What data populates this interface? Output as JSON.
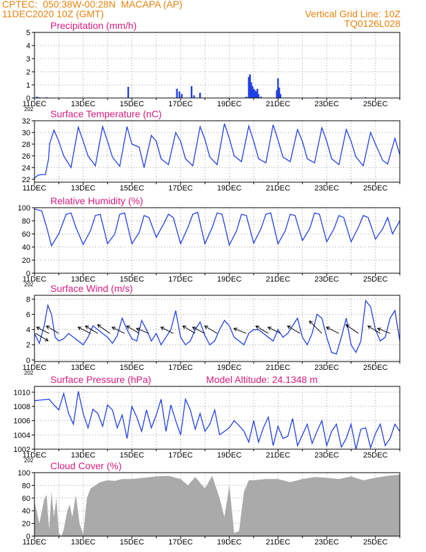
{
  "header": {
    "line1": "CPTEC:  050:38W-00:28N  MACAPA (AP)",
    "line2": "11DEC2020 10Z (GMT)",
    "grid_note": "Vertical Grid Line: 10Z",
    "model_code": "TQ0126L028"
  },
  "colors": {
    "header": "#e8820c",
    "title": "#d81b7d",
    "series": "#1f3fe6",
    "cloud": "#aaaaaa",
    "grid": "#9a9a9a"
  },
  "chart_data": [
    {
      "id": "precip",
      "type": "bar",
      "title": "Precipitation (mm/h)",
      "ylim": [
        0,
        5
      ],
      "yticks": [
        0,
        1,
        2,
        3,
        4,
        5
      ],
      "grid": true,
      "x_ticks": [
        "11DEC",
        "13DEC",
        "15DEC",
        "17DEC",
        "19DEC",
        "21DEC",
        "23DEC",
        "25DEC"
      ],
      "x_cut": "202",
      "days": [
        11,
        26
      ],
      "x": [
        11.1,
        11.2,
        11.5,
        14.85,
        16.85,
        16.95,
        17.05,
        17.45,
        17.55,
        17.8,
        19.7,
        19.8,
        19.85,
        19.9,
        19.95,
        20.0,
        20.05,
        20.1,
        20.15,
        20.2,
        20.3,
        20.95,
        21.0,
        21.05,
        21.1,
        22.6,
        24.6
      ],
      "values": [
        0.1,
        0.05,
        0.05,
        0.85,
        0.7,
        0.5,
        0.3,
        0.9,
        0.2,
        0.4,
        0.1,
        1.6,
        1.8,
        1.2,
        0.9,
        0.7,
        0.6,
        0.5,
        0.7,
        0.3,
        0.1,
        0.6,
        1.5,
        0.8,
        0.3,
        0.05,
        0.05
      ]
    },
    {
      "id": "temp",
      "type": "line",
      "title": "Surface Temperature (nC)",
      "ylim": [
        21.5,
        32
      ],
      "yticks": [
        22,
        24,
        26,
        28,
        30,
        32
      ],
      "grid": true,
      "x_ticks": [
        "11DEC",
        "13DEC",
        "15DEC",
        "17DEC",
        "19DEC",
        "21DEC",
        "23DEC",
        "25DEC"
      ],
      "x_cut": "",
      "days": [
        11,
        26
      ],
      "x": [
        11.0,
        11.15,
        11.3,
        11.45,
        11.58,
        11.62,
        11.8,
        12.0,
        12.2,
        12.5,
        12.8,
        13.0,
        13.2,
        13.5,
        13.8,
        14.0,
        14.2,
        14.5,
        14.8,
        15.0,
        15.3,
        15.5,
        15.8,
        16.0,
        16.2,
        16.5,
        16.8,
        17.0,
        17.2,
        17.5,
        17.8,
        18.0,
        18.2,
        18.5,
        18.8,
        19.0,
        19.2,
        19.5,
        19.8,
        20.0,
        20.2,
        20.5,
        20.8,
        21.0,
        21.2,
        21.5,
        21.8,
        22.0,
        22.2,
        22.5,
        22.8,
        23.0,
        23.2,
        23.5,
        23.8,
        24.0,
        24.2,
        24.5,
        24.8,
        25.0,
        25.3,
        25.5,
        25.8,
        26.0
      ],
      "values": [
        22.2,
        22.7,
        22.8,
        22.8,
        25.5,
        28.0,
        30.4,
        28.5,
        26.0,
        24.0,
        30.9,
        28.5,
        26.0,
        24.3,
        31.0,
        28.5,
        25.8,
        24.2,
        31.0,
        28.0,
        27.5,
        24.0,
        29.5,
        28.5,
        25.5,
        24.5,
        30.0,
        28.5,
        25.5,
        24.3,
        31.0,
        28.8,
        25.8,
        24.5,
        31.5,
        29.0,
        26.0,
        25.0,
        31.1,
        28.5,
        25.5,
        24.8,
        31.3,
        28.7,
        25.8,
        25.0,
        30.5,
        28.5,
        25.5,
        24.8,
        30.8,
        28.5,
        25.5,
        24.5,
        30.5,
        28.5,
        25.8,
        24.3,
        30.0,
        28.0,
        25.2,
        24.6,
        29.0,
        26.2
      ]
    },
    {
      "id": "rh",
      "type": "line",
      "title": "Relative Humidity (%)",
      "ylim": [
        0,
        100
      ],
      "yticks": [
        0,
        20,
        40,
        60,
        80,
        100
      ],
      "grid": true,
      "x_ticks": [
        "11DEC",
        "13DEC",
        "15DEC",
        "17DEC",
        "19DEC",
        "21DEC",
        "23DEC",
        "25DEC"
      ],
      "x_cut": "202",
      "days": [
        11,
        26
      ],
      "x": [
        11.0,
        11.3,
        11.5,
        11.7,
        12.0,
        12.3,
        12.5,
        12.7,
        13.0,
        13.3,
        13.5,
        13.7,
        14.0,
        14.3,
        14.5,
        14.7,
        15.0,
        15.3,
        15.5,
        15.7,
        16.0,
        16.3,
        16.5,
        16.7,
        17.0,
        17.3,
        17.5,
        17.7,
        18.0,
        18.3,
        18.5,
        18.7,
        19.0,
        19.3,
        19.5,
        19.7,
        20.0,
        20.3,
        20.5,
        20.7,
        21.0,
        21.3,
        21.5,
        21.7,
        22.0,
        22.3,
        22.5,
        22.7,
        23.0,
        23.3,
        23.5,
        23.7,
        24.0,
        24.3,
        24.5,
        24.7,
        25.0,
        25.3,
        25.5,
        25.7,
        26.0
      ],
      "values": [
        98,
        95,
        70,
        42,
        60,
        90,
        92,
        70,
        44,
        65,
        88,
        90,
        45,
        60,
        90,
        92,
        45,
        62,
        88,
        85,
        55,
        75,
        90,
        85,
        45,
        70,
        90,
        93,
        45,
        70,
        92,
        90,
        43,
        65,
        90,
        88,
        46,
        68,
        90,
        92,
        45,
        65,
        90,
        88,
        50,
        68,
        92,
        90,
        48,
        68,
        88,
        85,
        48,
        70,
        88,
        85,
        52,
        68,
        85,
        60,
        80
      ]
    },
    {
      "id": "wind",
      "type": "line",
      "title": "Surface Wind (m/s)",
      "ylim": [
        -0.2,
        8.5
      ],
      "yticks": [
        0,
        2,
        4,
        6,
        8
      ],
      "grid": true,
      "x_ticks": [
        "11DEC",
        "13DEC",
        "15DEC",
        "17DEC",
        "19DEC",
        "21DEC",
        "23DEC",
        "25DEC"
      ],
      "x_cut": "202",
      "days": [
        11,
        26
      ],
      "x": [
        11.0,
        11.2,
        11.4,
        11.55,
        11.7,
        11.85,
        12.0,
        12.2,
        12.4,
        12.6,
        12.8,
        13.0,
        13.2,
        13.4,
        13.6,
        13.8,
        14.0,
        14.2,
        14.4,
        14.6,
        14.8,
        15.0,
        15.2,
        15.4,
        15.6,
        15.8,
        16.0,
        16.2,
        16.4,
        16.6,
        16.8,
        17.0,
        17.2,
        17.4,
        17.6,
        17.8,
        18.0,
        18.2,
        18.4,
        18.6,
        18.8,
        19.0,
        19.2,
        19.4,
        19.6,
        19.8,
        20.0,
        20.2,
        20.4,
        20.6,
        20.8,
        21.0,
        21.2,
        21.4,
        21.6,
        21.8,
        22.0,
        22.2,
        22.4,
        22.6,
        22.8,
        23.0,
        23.2,
        23.4,
        23.6,
        23.8,
        24.0,
        24.2,
        24.4,
        24.6,
        24.8,
        25.0,
        25.2,
        25.4,
        25.6,
        25.8,
        26.0
      ],
      "values": [
        3.5,
        2.2,
        4.5,
        7.2,
        6.0,
        3.0,
        2.5,
        2.8,
        3.5,
        3.0,
        2.5,
        2.0,
        3.0,
        4.5,
        4.0,
        3.5,
        3.0,
        2.2,
        3.2,
        5.5,
        4.0,
        2.8,
        2.5,
        5.2,
        4.0,
        2.5,
        3.5,
        2.0,
        3.0,
        4.0,
        6.5,
        3.0,
        2.0,
        2.5,
        4.0,
        5.0,
        3.2,
        2.0,
        2.5,
        4.0,
        5.2,
        4.5,
        3.0,
        2.5,
        2.0,
        3.5,
        4.0,
        4.0,
        3.5,
        3.0,
        2.5,
        4.0,
        3.0,
        3.5,
        4.5,
        5.5,
        3.0,
        2.0,
        3.5,
        6.0,
        5.5,
        3.0,
        1.0,
        0.8,
        3.0,
        5.5,
        2.0,
        1.0,
        2.5,
        7.8,
        7.0,
        4.0,
        2.5,
        3.0,
        5.5,
        6.5,
        2.5
      ],
      "arrows": [
        {
          "day": 11.05,
          "u": 1.0,
          "v": -0.6
        },
        {
          "day": 11.6,
          "u": -1.0,
          "v": 0.5
        },
        {
          "day": 12.0,
          "u": -1.0,
          "v": 0.6
        },
        {
          "day": 13.3,
          "u": -1.0,
          "v": 0.5
        },
        {
          "day": 13.6,
          "u": -1.0,
          "v": 0.6
        },
        {
          "day": 14.1,
          "u": -1.0,
          "v": 0.7
        },
        {
          "day": 14.7,
          "u": -1.0,
          "v": 0.5
        },
        {
          "day": 15.3,
          "u": -1.0,
          "v": 0.6
        },
        {
          "day": 15.7,
          "u": -1.0,
          "v": 0.4
        },
        {
          "day": 16.7,
          "u": -1.0,
          "v": 0.5
        },
        {
          "day": 17.6,
          "u": -1.0,
          "v": 0.6
        },
        {
          "day": 18.0,
          "u": -1.0,
          "v": 0.5
        },
        {
          "day": 18.5,
          "u": -1.0,
          "v": 0.6
        },
        {
          "day": 19.7,
          "u": -1.0,
          "v": 0.4
        },
        {
          "day": 20.6,
          "u": -1.0,
          "v": 0.6
        },
        {
          "day": 21.1,
          "u": -1.0,
          "v": 0.5
        },
        {
          "day": 21.9,
          "u": -1.0,
          "v": 0.6
        },
        {
          "day": 22.8,
          "u": -1.0,
          "v": 1.0
        },
        {
          "day": 23.5,
          "u": -1.0,
          "v": 0.5
        },
        {
          "day": 24.3,
          "u": -1.0,
          "v": 0.7
        },
        {
          "day": 25.2,
          "u": -1.0,
          "v": 0.6
        },
        {
          "day": 25.6,
          "u": -1.0,
          "v": 0.4
        }
      ]
    },
    {
      "id": "pres",
      "type": "line",
      "title": "Surface Pressure (hPa)",
      "note": "Model Altitude: 24.1348 m",
      "ylim": [
        1002,
        1010.8
      ],
      "yticks": [
        1002,
        1004,
        1006,
        1008,
        1010
      ],
      "grid": true,
      "x_ticks": [
        "11DEC",
        "13DEC",
        "15DEC",
        "17DEC",
        "19DEC",
        "21DEC",
        "23DEC",
        "25DEC"
      ],
      "x_cut": "202",
      "days": [
        11,
        26
      ],
      "x": [
        11.0,
        11.3,
        11.6,
        11.8,
        12.0,
        12.2,
        12.4,
        12.6,
        12.8,
        13.0,
        13.2,
        13.4,
        13.6,
        13.8,
        14.0,
        14.2,
        14.4,
        14.6,
        14.8,
        15.0,
        15.2,
        15.4,
        15.6,
        15.8,
        16.0,
        16.2,
        16.4,
        16.6,
        16.8,
        17.0,
        17.2,
        17.4,
        17.6,
        17.8,
        18.0,
        18.2,
        18.4,
        18.6,
        18.8,
        19.0,
        19.2,
        19.4,
        19.6,
        19.8,
        20.0,
        20.2,
        20.4,
        20.6,
        20.8,
        21.0,
        21.2,
        21.4,
        21.6,
        21.8,
        22.0,
        22.2,
        22.4,
        22.6,
        22.8,
        23.0,
        23.2,
        23.4,
        23.6,
        23.8,
        24.0,
        24.2,
        24.4,
        24.6,
        24.8,
        25.0,
        25.2,
        25.4,
        25.6,
        25.8,
        26.0
      ],
      "values": [
        1008.8,
        1008.9,
        1009.0,
        1008.2,
        1007.5,
        1009.8,
        1007.0,
        1005.5,
        1010.1,
        1007.0,
        1005.0,
        1007.6,
        1007.0,
        1005.2,
        1008.2,
        1007.5,
        1005.0,
        1006.8,
        1003.5,
        1008.0,
        1006.5,
        1004.5,
        1007.5,
        1005.0,
        1006.8,
        1009.0,
        1004.5,
        1008.2,
        1006.0,
        1004.0,
        1009.0,
        1007.5,
        1004.8,
        1007.0,
        1004.5,
        1005.5,
        1007.5,
        1004.0,
        1004.5,
        1005.0,
        1006.0,
        1005.3,
        1004.5,
        1003.0,
        1006.0,
        1003.0,
        1005.0,
        1006.5,
        1002.5,
        1005.2,
        1003.5,
        1003.8,
        1006.3,
        1002.5,
        1004.0,
        1005.5,
        1002.8,
        1004.5,
        1006.0,
        1002.5,
        1004.5,
        1005.5,
        1002.3,
        1003.5,
        1005.5,
        1002.0,
        1004.8,
        1005.0,
        1002.2,
        1004.2,
        1005.5,
        1002.5,
        1003.5,
        1005.5,
        1004.5
      ]
    },
    {
      "id": "cloud",
      "type": "area",
      "title": "Cloud Cover (%)",
      "ylim": [
        0,
        100
      ],
      "yticks": [
        0,
        20,
        40,
        60,
        80,
        100
      ],
      "grid": true,
      "x_ticks": [
        "11DEC",
        "13DEC",
        "15DEC",
        "17DEC",
        "19DEC",
        "21DEC",
        "23DEC",
        "25DEC"
      ],
      "x_cut": "",
      "days": [
        11,
        26
      ],
      "x": [
        11.0,
        11.2,
        11.4,
        11.5,
        11.6,
        11.7,
        11.8,
        11.9,
        12.0,
        12.1,
        12.2,
        12.35,
        12.45,
        12.55,
        12.7,
        12.85,
        13.0,
        13.15,
        13.3,
        13.5,
        13.7,
        14.0,
        14.3,
        14.6,
        15.0,
        15.5,
        16.0,
        16.5,
        17.0,
        17.3,
        17.6,
        18.0,
        18.3,
        18.6,
        18.8,
        19.0,
        19.2,
        19.4,
        19.6,
        19.8,
        20.0,
        20.5,
        21.0,
        21.5,
        22.0,
        22.5,
        23.0,
        23.5,
        24.0,
        24.5,
        25.0,
        25.5,
        26.0
      ],
      "values": [
        55,
        20,
        58,
        65,
        10,
        70,
        30,
        60,
        5,
        0,
        10,
        40,
        50,
        30,
        65,
        20,
        3,
        60,
        75,
        80,
        85,
        88,
        87,
        90,
        90,
        92,
        94,
        95,
        90,
        80,
        93,
        75,
        95,
        60,
        30,
        80,
        5,
        8,
        70,
        88,
        88,
        90,
        90,
        85,
        90,
        93,
        92,
        90,
        94,
        88,
        92,
        95,
        97
      ]
    }
  ]
}
